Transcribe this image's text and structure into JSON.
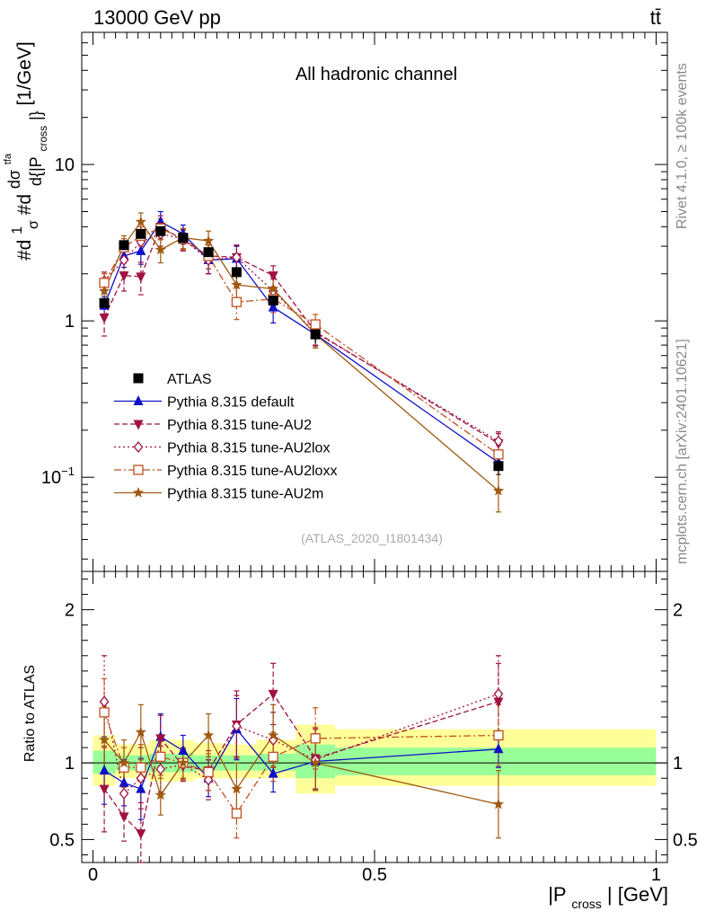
{
  "header": {
    "energy_label": "13000 GeV pp",
    "process_label": "tt̄",
    "channel_title": "All hadronic channel",
    "analysis_id": "(ATLAS_2020_I1801434)",
    "side_rivet": "Rivet 4.1.0, ≥ 100k events",
    "side_mcplots": "mcplots.cern.ch [arXiv:2401.10621]"
  },
  "colors": {
    "data": "#000000",
    "default": "#1010c8",
    "au2": "#a01040",
    "au2lox": "#a01040",
    "au2loxx": "#c05020",
    "au2m": "#a05a10",
    "band_outer": "#ffff99",
    "band_inner": "#99ff99"
  },
  "chart_data": [
    {
      "type": "line",
      "panel": "main",
      "title": "All hadronic channel",
      "ylabel": "#d₁/σ #d dσᵗᶠᵃ / d{|P_cross|} [1/GeV]",
      "ylabel_parts": {
        "prefix": "#d",
        "frac1_num": "1",
        "frac1_den": "σ",
        "mid": "#d",
        "frac2_num": "dσ",
        "frac2_sup": "tfa",
        "frac2_den": "d{|P",
        "frac2_den_sub": "cross",
        "frac2_den_end": "|}",
        "suffix": " [1/GeV]"
      },
      "yscale": "log",
      "ylim": [
        0.025,
        70
      ],
      "xlim": [
        -0.02,
        1.02
      ],
      "y_tick_labels": [
        {
          "value": 0.1,
          "base": "10",
          "exp": "−1"
        },
        {
          "value": 1,
          "base": "1",
          "exp": ""
        },
        {
          "value": 10,
          "base": "10",
          "exp": ""
        }
      ],
      "x": [
        0.02,
        0.055,
        0.085,
        0.12,
        0.16,
        0.205,
        0.255,
        0.32,
        0.395,
        0.72
      ],
      "data": {
        "name": "ATLAS",
        "values": [
          1.3,
          3.05,
          3.6,
          3.75,
          3.4,
          2.75,
          2.05,
          1.35,
          0.82,
          0.118
        ],
        "err": [
          0.12,
          0.25,
          0.25,
          0.25,
          0.22,
          0.2,
          0.18,
          0.15,
          0.1,
          0.015
        ]
      },
      "series": [
        {
          "name": "Pythia 8.315 default",
          "key": "default",
          "marker": "triangle-up",
          "dash": "",
          "values": [
            1.25,
            2.6,
            2.8,
            4.3,
            3.6,
            2.45,
            2.5,
            1.22,
            0.82,
            0.124
          ],
          "err": [
            0.18,
            0.4,
            0.5,
            0.7,
            0.5,
            0.45,
            0.5,
            0.25,
            0.15,
            0.02
          ]
        },
        {
          "name": "Pythia 8.315 tune-AU2",
          "key": "au2",
          "marker": "triangle-down",
          "dash": "6,3",
          "values": [
            1.05,
            1.95,
            1.92,
            4.0,
            3.3,
            2.6,
            2.55,
            1.95,
            0.85,
            0.165
          ],
          "err": [
            0.25,
            0.4,
            0.45,
            0.7,
            0.5,
            0.45,
            0.5,
            0.3,
            0.15,
            0.025
          ]
        },
        {
          "name": "Pythia 8.315 tune-AU2lox",
          "key": "au2lox",
          "marker": "diamond-open",
          "dash": "2,3",
          "values": [
            1.8,
            2.45,
            3.2,
            3.6,
            3.35,
            2.45,
            2.55,
            1.55,
            0.84,
            0.17
          ],
          "err": [
            0.25,
            0.4,
            0.5,
            0.6,
            0.5,
            0.45,
            0.5,
            0.3,
            0.15,
            0.025
          ]
        },
        {
          "name": "Pythia 8.315 tune-AU2loxx",
          "key": "au2loxx",
          "marker": "square-open",
          "dash": "8,3,2,3",
          "values": [
            1.75,
            2.95,
            3.5,
            3.9,
            3.35,
            2.6,
            1.32,
            1.38,
            0.95,
            0.14
          ],
          "err": [
            0.25,
            0.4,
            0.5,
            0.6,
            0.5,
            0.45,
            0.3,
            0.25,
            0.15,
            0.02
          ]
        },
        {
          "name": "Pythia 8.315 tune-AU2m",
          "key": "au2m",
          "marker": "star",
          "dash": "",
          "values": [
            1.55,
            3.05,
            4.3,
            2.85,
            3.4,
            3.25,
            1.7,
            1.6,
            0.82,
            0.082
          ],
          "err": [
            0.25,
            0.45,
            0.6,
            0.5,
            0.5,
            0.5,
            0.35,
            0.3,
            0.15,
            0.022
          ]
        }
      ]
    },
    {
      "type": "line",
      "panel": "ratio",
      "ylabel": "Ratio to ATLAS",
      "ylim": [
        0.35,
        2.25
      ],
      "xlim": [
        -0.02,
        1.02
      ],
      "xlabel": "|P_cross| [GeV]",
      "xlabel_parts": {
        "pre": "|P",
        "sub": "cross",
        "post": "| [GeV]"
      },
      "x_ticks": [
        0,
        0.5,
        1
      ],
      "x_tick_labels": [
        "0",
        "0.5",
        "1"
      ],
      "y_ticks": [
        0.5,
        1,
        2
      ],
      "y_tick_labels": [
        "0.5",
        "1",
        "2"
      ],
      "bin_edges": [
        0.0,
        0.04,
        0.07,
        0.1,
        0.14,
        0.18,
        0.23,
        0.29,
        0.36,
        0.43,
        1.0
      ],
      "band_outer": [
        [
          0.85,
          1.18
        ],
        [
          0.9,
          1.12
        ],
        [
          0.9,
          1.12
        ],
        [
          0.88,
          1.15
        ],
        [
          0.88,
          1.15
        ],
        [
          0.9,
          1.13
        ],
        [
          0.9,
          1.12
        ],
        [
          0.9,
          1.15
        ],
        [
          0.8,
          1.25
        ],
        [
          0.85,
          1.22
        ]
      ],
      "band_inner": [
        [
          0.93,
          1.08
        ],
        [
          0.95,
          1.05
        ],
        [
          0.95,
          1.05
        ],
        [
          0.94,
          1.06
        ],
        [
          0.94,
          1.06
        ],
        [
          0.95,
          1.05
        ],
        [
          0.95,
          1.05
        ],
        [
          0.95,
          1.06
        ],
        [
          0.9,
          1.12
        ],
        [
          0.92,
          1.1
        ]
      ],
      "x": [
        0.02,
        0.055,
        0.085,
        0.12,
        0.16,
        0.205,
        0.255,
        0.32,
        0.395,
        0.72
      ],
      "series": [
        {
          "key": "default",
          "values": [
            0.95,
            0.87,
            0.83,
            1.17,
            1.08,
            0.9,
            1.22,
            0.93,
            1.01,
            1.09
          ],
          "err": [
            0.22,
            0.15,
            0.2,
            0.15,
            0.1,
            0.12,
            0.2,
            0.12,
            0.18,
            0.12
          ]
        },
        {
          "key": "au2",
          "values": [
            0.83,
            0.65,
            0.54,
            1.16,
            0.98,
            0.95,
            1.25,
            1.45,
            1.03,
            1.4
          ],
          "err": [
            0.28,
            0.16,
            0.2,
            0.15,
            0.1,
            0.13,
            0.22,
            0.2,
            0.2,
            0.25
          ]
        },
        {
          "key": "au2lox",
          "values": [
            1.4,
            0.8,
            0.9,
            0.96,
            0.99,
            0.89,
            1.24,
            1.15,
            1.02,
            1.45
          ],
          "err": [
            0.3,
            0.15,
            0.2,
            0.15,
            0.1,
            0.13,
            0.2,
            0.18,
            0.2,
            0.25
          ]
        },
        {
          "key": "au2loxx",
          "values": [
            1.33,
            0.97,
            0.97,
            1.04,
            1.0,
            0.94,
            0.67,
            1.04,
            1.16,
            1.18
          ],
          "err": [
            0.22,
            0.13,
            0.15,
            0.14,
            0.1,
            0.12,
            0.16,
            0.16,
            0.2,
            0.2
          ]
        },
        {
          "key": "au2m",
          "values": [
            1.15,
            1.0,
            1.2,
            0.79,
            1.0,
            1.18,
            0.83,
            1.18,
            1.0,
            0.73
          ],
          "err": [
            0.22,
            0.15,
            0.18,
            0.13,
            0.1,
            0.14,
            0.17,
            0.2,
            0.18,
            0.22
          ]
        }
      ]
    }
  ]
}
